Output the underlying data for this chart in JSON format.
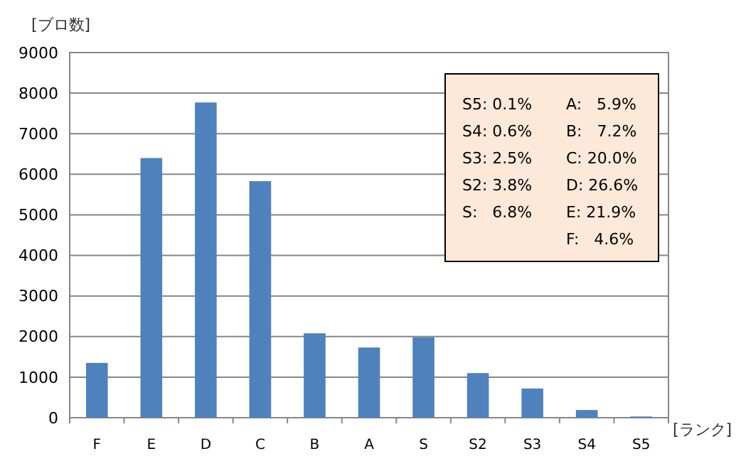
{
  "chart_data": {
    "type": "bar",
    "ylabel": "[ブロ数]",
    "xlabel": "[ランク]",
    "categories": [
      "F",
      "E",
      "D",
      "C",
      "B",
      "A",
      "S",
      "S2",
      "S3",
      "S4",
      "S5"
    ],
    "values": [
      1350,
      6400,
      7770,
      5830,
      2080,
      1730,
      1980,
      1100,
      720,
      190,
      30
    ],
    "color": "#4f81bd",
    "ylim": [
      0,
      9000
    ],
    "yticks": [
      0,
      1000,
      2000,
      3000,
      4000,
      5000,
      6000,
      7000,
      8000,
      9000
    ],
    "grid": "y",
    "annotations": [
      "S5: 0.1%",
      "S4: 0.6%",
      "S3: 2.5%",
      "S2: 3.8%",
      "S:   6.8%",
      "A:   5.9%",
      "B:   7.2%",
      "C: 20.0%",
      "D: 26.6%",
      "E: 21.9%",
      "F:   4.6%"
    ]
  }
}
